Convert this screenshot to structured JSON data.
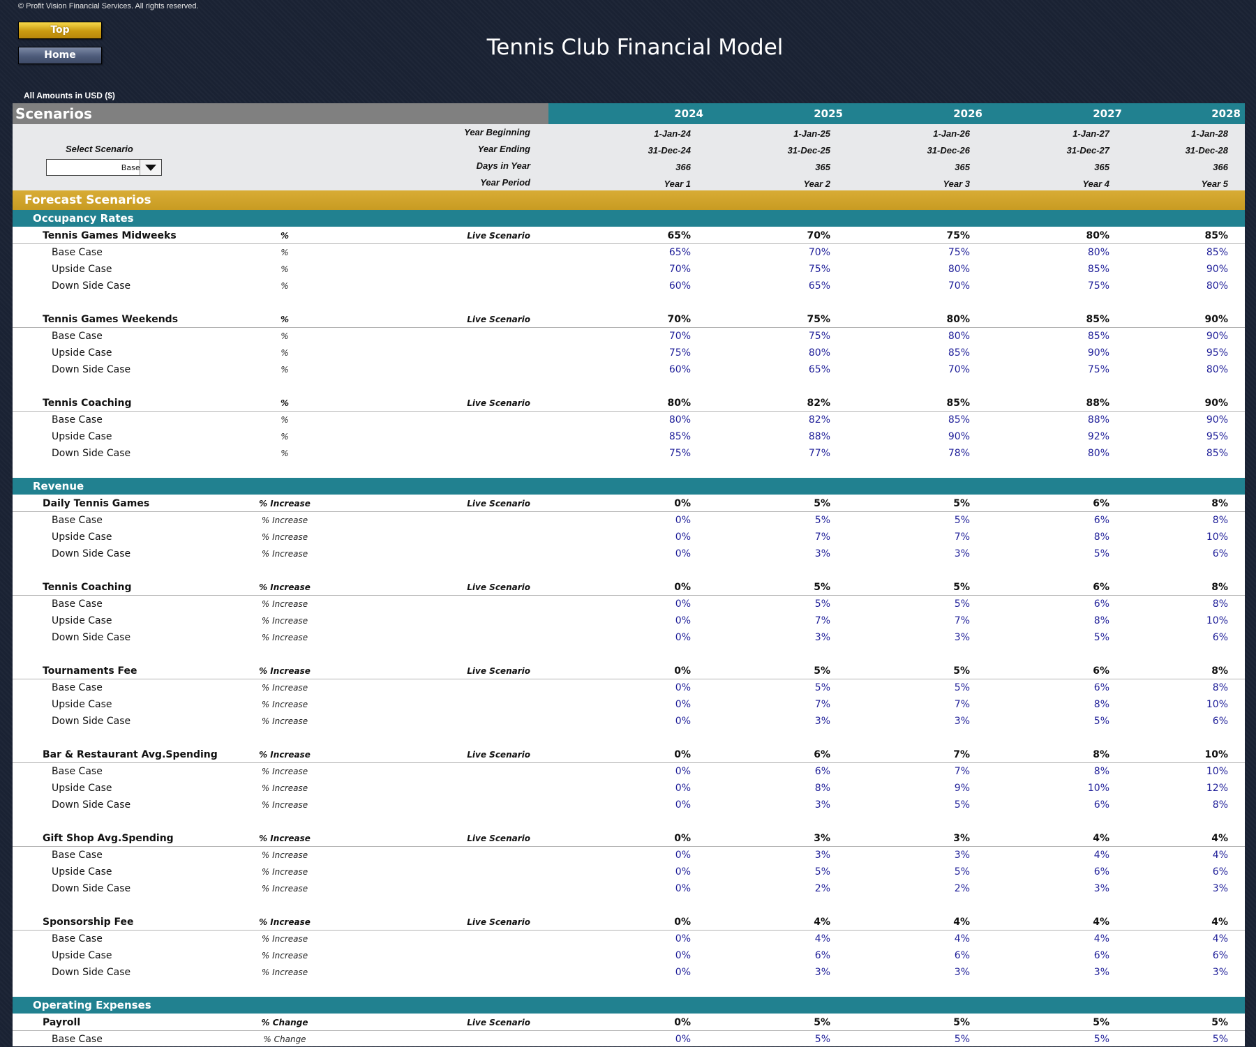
{
  "copyright": "© Profit Vision Financial Services. All rights reserved.",
  "nav": {
    "top_label": "Top",
    "home_label": "Home"
  },
  "title": "Tennis Club Financial Model",
  "amounts_note": "All Amounts in  USD ($)",
  "scenarios": {
    "title": "Scenarios",
    "years": [
      "2024",
      "2025",
      "2026",
      "2027",
      "2028"
    ],
    "select_label": "Select Scenario",
    "selected_scenario": "Base Case",
    "info_rows": [
      {
        "label": "Year Beginning",
        "values": [
          "1-Jan-24",
          "1-Jan-25",
          "1-Jan-26",
          "1-Jan-27",
          "1-Jan-28"
        ]
      },
      {
        "label": "Year Ending",
        "values": [
          "31-Dec-24",
          "31-Dec-25",
          "31-Dec-26",
          "31-Dec-27",
          "31-Dec-28"
        ]
      },
      {
        "label": "Days in Year",
        "values": [
          "366",
          "365",
          "365",
          "365",
          "366"
        ]
      },
      {
        "label": "Year Period",
        "values": [
          "Year 1",
          "Year 2",
          "Year 3",
          "Year 4",
          "Year 5"
        ]
      }
    ]
  },
  "forecast_title": "Forecast Scenarios",
  "live_label": "Live Scenario",
  "sections": [
    {
      "title": "Occupancy Rates",
      "groups": [
        {
          "name": "Tennis Games Midweeks",
          "unit": "%",
          "live": [
            "65%",
            "70%",
            "75%",
            "80%",
            "85%"
          ],
          "cases": [
            {
              "name": "Base Case",
              "unit": "%",
              "values": [
                "65%",
                "70%",
                "75%",
                "80%",
                "85%"
              ]
            },
            {
              "name": "Upside Case",
              "unit": "%",
              "values": [
                "70%",
                "75%",
                "80%",
                "85%",
                "90%"
              ]
            },
            {
              "name": "Down Side Case",
              "unit": "%",
              "values": [
                "60%",
                "65%",
                "70%",
                "75%",
                "80%"
              ]
            }
          ]
        },
        {
          "name": "Tennis Games Weekends",
          "unit": "%",
          "live": [
            "70%",
            "75%",
            "80%",
            "85%",
            "90%"
          ],
          "cases": [
            {
              "name": "Base Case",
              "unit": "%",
              "values": [
                "70%",
                "75%",
                "80%",
                "85%",
                "90%"
              ]
            },
            {
              "name": "Upside Case",
              "unit": "%",
              "values": [
                "75%",
                "80%",
                "85%",
                "90%",
                "95%"
              ]
            },
            {
              "name": "Down Side Case",
              "unit": "%",
              "values": [
                "60%",
                "65%",
                "70%",
                "75%",
                "80%"
              ]
            }
          ]
        },
        {
          "name": "Tennis Coaching",
          "unit": "%",
          "live": [
            "80%",
            "82%",
            "85%",
            "88%",
            "90%"
          ],
          "cases": [
            {
              "name": "Base Case",
              "unit": "%",
              "values": [
                "80%",
                "82%",
                "85%",
                "88%",
                "90%"
              ]
            },
            {
              "name": "Upside Case",
              "unit": "%",
              "values": [
                "85%",
                "88%",
                "90%",
                "92%",
                "95%"
              ]
            },
            {
              "name": "Down Side Case",
              "unit": "%",
              "values": [
                "75%",
                "77%",
                "78%",
                "80%",
                "85%"
              ]
            }
          ]
        }
      ]
    },
    {
      "title": "Revenue",
      "groups": [
        {
          "name": "Daily Tennis Games",
          "unit": "% Increase",
          "live": [
            "0%",
            "5%",
            "5%",
            "6%",
            "8%"
          ],
          "cases": [
            {
              "name": "Base Case",
              "unit": "% Increase",
              "values": [
                "0%",
                "5%",
                "5%",
                "6%",
                "8%"
              ]
            },
            {
              "name": "Upside Case",
              "unit": "% Increase",
              "values": [
                "0%",
                "7%",
                "7%",
                "8%",
                "10%"
              ]
            },
            {
              "name": "Down Side Case",
              "unit": "% Increase",
              "values": [
                "0%",
                "3%",
                "3%",
                "5%",
                "6%"
              ]
            }
          ]
        },
        {
          "name": "Tennis Coaching",
          "unit": "% Increase",
          "live": [
            "0%",
            "5%",
            "5%",
            "6%",
            "8%"
          ],
          "cases": [
            {
              "name": "Base Case",
              "unit": "% Increase",
              "values": [
                "0%",
                "5%",
                "5%",
                "6%",
                "8%"
              ]
            },
            {
              "name": "Upside Case",
              "unit": "% Increase",
              "values": [
                "0%",
                "7%",
                "7%",
                "8%",
                "10%"
              ]
            },
            {
              "name": "Down Side Case",
              "unit": "% Increase",
              "values": [
                "0%",
                "3%",
                "3%",
                "5%",
                "6%"
              ]
            }
          ]
        },
        {
          "name": "Tournaments Fee",
          "unit": "% Increase",
          "live": [
            "0%",
            "5%",
            "5%",
            "6%",
            "8%"
          ],
          "cases": [
            {
              "name": "Base Case",
              "unit": "% Increase",
              "values": [
                "0%",
                "5%",
                "5%",
                "6%",
                "8%"
              ]
            },
            {
              "name": "Upside Case",
              "unit": "% Increase",
              "values": [
                "0%",
                "7%",
                "7%",
                "8%",
                "10%"
              ]
            },
            {
              "name": "Down Side Case",
              "unit": "% Increase",
              "values": [
                "0%",
                "3%",
                "3%",
                "5%",
                "6%"
              ]
            }
          ]
        },
        {
          "name": "Bar & Restaurant Avg.Spending",
          "unit": "% Increase",
          "live": [
            "0%",
            "6%",
            "7%",
            "8%",
            "10%"
          ],
          "cases": [
            {
              "name": "Base Case",
              "unit": "% Increase",
              "values": [
                "0%",
                "6%",
                "7%",
                "8%",
                "10%"
              ]
            },
            {
              "name": "Upside Case",
              "unit": "% Increase",
              "values": [
                "0%",
                "8%",
                "9%",
                "10%",
                "12%"
              ]
            },
            {
              "name": "Down Side Case",
              "unit": "% Increase",
              "values": [
                "0%",
                "3%",
                "5%",
                "6%",
                "8%"
              ]
            }
          ]
        },
        {
          "name": "Gift Shop Avg.Spending",
          "unit": "% Increase",
          "live": [
            "0%",
            "3%",
            "3%",
            "4%",
            "4%"
          ],
          "cases": [
            {
              "name": "Base Case",
              "unit": "% Increase",
              "values": [
                "0%",
                "3%",
                "3%",
                "4%",
                "4%"
              ]
            },
            {
              "name": "Upside Case",
              "unit": "% Increase",
              "values": [
                "0%",
                "5%",
                "5%",
                "6%",
                "6%"
              ]
            },
            {
              "name": "Down Side Case",
              "unit": "% Increase",
              "values": [
                "0%",
                "2%",
                "2%",
                "3%",
                "3%"
              ]
            }
          ]
        },
        {
          "name": "Sponsorship Fee",
          "unit": "% Increase",
          "live": [
            "0%",
            "4%",
            "4%",
            "4%",
            "4%"
          ],
          "cases": [
            {
              "name": "Base Case",
              "unit": "% Increase",
              "values": [
                "0%",
                "4%",
                "4%",
                "4%",
                "4%"
              ]
            },
            {
              "name": "Upside Case",
              "unit": "% Increase",
              "values": [
                "0%",
                "6%",
                "6%",
                "6%",
                "6%"
              ]
            },
            {
              "name": "Down Side Case",
              "unit": "% Increase",
              "values": [
                "0%",
                "3%",
                "3%",
                "3%",
                "3%"
              ]
            }
          ]
        }
      ]
    },
    {
      "title": "Operating Expenses",
      "groups": [
        {
          "name": "Payroll",
          "unit": "% Change",
          "live": [
            "0%",
            "5%",
            "5%",
            "5%",
            "5%"
          ],
          "cases": [
            {
              "name": "Base Case",
              "unit": "% Change",
              "values": [
                "0%",
                "5%",
                "5%",
                "5%",
                "5%"
              ]
            }
          ]
        }
      ]
    }
  ]
}
